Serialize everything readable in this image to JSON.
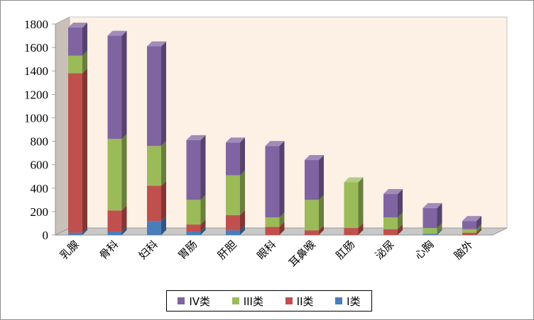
{
  "chart_data": {
    "type": "bar",
    "stacked": true,
    "three_d": true,
    "categories": [
      "乳腺",
      "骨科",
      "妇科",
      "胃肠",
      "肝胆",
      "眼科",
      "耳鼻喉",
      "肛肠",
      "泌尿",
      "心胸",
      "脑外"
    ],
    "series": [
      {
        "name": "I类",
        "color": "#4a7ebb",
        "values": [
          20,
          30,
          120,
          30,
          40,
          0,
          0,
          0,
          0,
          10,
          0
        ]
      },
      {
        "name": "II类",
        "color": "#c0504d",
        "values": [
          1360,
          180,
          300,
          60,
          130,
          70,
          40,
          60,
          50,
          0,
          20
        ]
      },
      {
        "name": "III类",
        "color": "#9bbb59",
        "values": [
          150,
          610,
          340,
          210,
          340,
          80,
          260,
          390,
          100,
          50,
          30
        ]
      },
      {
        "name": "IV类",
        "color": "#8064a2",
        "values": [
          240,
          880,
          850,
          510,
          280,
          610,
          340,
          0,
          200,
          170,
          70
        ]
      }
    ],
    "ylim": [
      0,
      1800
    ],
    "yticks": [
      0,
      200,
      400,
      600,
      800,
      1000,
      1200,
      1400,
      1600,
      1800
    ],
    "legend_position": "bottom",
    "legend_order": [
      "IV类",
      "III类",
      "II类",
      "I类"
    ],
    "grid": false,
    "wall_color": "#fdf0e5",
    "floor_color": "#c8c8c8"
  }
}
